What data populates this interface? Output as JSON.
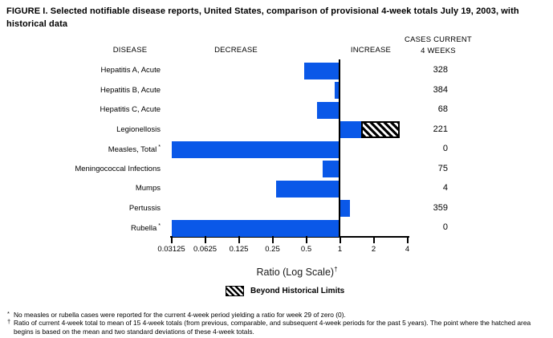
{
  "figure": {
    "title": "FIGURE I. Selected notifiable disease reports, United States, comparison of provisional 4-week totals July 19, 2003, with historical data"
  },
  "headers": {
    "disease": "DISEASE",
    "decrease": "DECREASE",
    "increase": "INCREASE",
    "cases_line1": "CASES CURRENT",
    "cases_line2": "4 WEEKS"
  },
  "chart_data": {
    "type": "bar",
    "orientation": "horizontal",
    "scale": "log2",
    "title": "FIGURE I. Selected notifiable disease reports, United States, comparison of provisional 4-week totals July 19, 2003, with historical data",
    "xlabel": "Ratio (Log Scale)",
    "xlabel_superscript": "†",
    "xlim": [
      0.03125,
      4
    ],
    "axis_ticks": [
      "0.03125",
      "0.0625",
      "0.125",
      "0.25",
      "0.5",
      "1",
      "2",
      "4"
    ],
    "baseline": 1,
    "bar_color": "#0A58E8",
    "rows": [
      {
        "disease": "Hepatitis A, Acute",
        "footnote_marker": "",
        "cases": 328,
        "ratio": 0.48
      },
      {
        "disease": "Hepatitis B, Acute",
        "footnote_marker": "",
        "cases": 384,
        "ratio": 0.9
      },
      {
        "disease": "Hepatitis C, Acute",
        "footnote_marker": "",
        "cases": 68,
        "ratio": 0.62
      },
      {
        "disease": "Legionellosis",
        "footnote_marker": "",
        "cases": 221,
        "ratio": 3.4,
        "beyond_limit_from": 1.55
      },
      {
        "disease": "Measles, Total",
        "footnote_marker": "*",
        "cases": 0,
        "ratio": 0.03125
      },
      {
        "disease": "Meningococcal Infections",
        "footnote_marker": "",
        "cases": 75,
        "ratio": 0.7
      },
      {
        "disease": "Mumps",
        "footnote_marker": "",
        "cases": 4,
        "ratio": 0.27
      },
      {
        "disease": "Pertussis",
        "footnote_marker": "",
        "cases": 359,
        "ratio": 1.22
      },
      {
        "disease": "Rubella",
        "footnote_marker": "*",
        "cases": 0,
        "ratio": 0.03125
      }
    ],
    "legend": {
      "label": "Beyond Historical Limits",
      "swatch": "black-diagonal-hatch"
    }
  },
  "footnotes": [
    {
      "marker": "*",
      "text": "No measles or rubella cases were reported for the current 4-week period yielding a ratio for week 29 of zero (0)."
    },
    {
      "marker": "†",
      "text": "Ratio of current 4-week total to mean of 15 4-week totals (from previous, comparable, and subsequent 4-week periods for the past 5 years). The point where the hatched area begins is based on the mean and two standard deviations of these 4-week totals."
    }
  ]
}
